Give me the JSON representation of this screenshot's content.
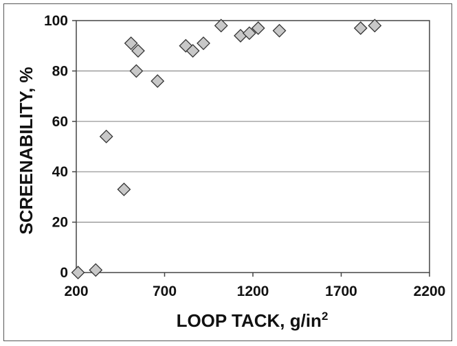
{
  "chart_data": {
    "type": "scatter",
    "title": "",
    "xlabel": "LOOP TACK, g/in",
    "xlabel_superscript": "2",
    "ylabel": "SCREENABILITY, %",
    "xlim": [
      200,
      2200
    ],
    "ylim": [
      0,
      100
    ],
    "x_ticks": [
      200,
      700,
      1200,
      1700,
      2200
    ],
    "y_ticks": [
      0,
      20,
      40,
      60,
      80,
      100
    ],
    "grid": "horizontal",
    "legend": "none",
    "marker": "diamond",
    "marker_fill": "#c8c8c8",
    "marker_stroke": "#333333",
    "gridline_color": "#8c8c8c",
    "points": [
      {
        "x": 210,
        "y": 0
      },
      {
        "x": 310,
        "y": 1
      },
      {
        "x": 370,
        "y": 54
      },
      {
        "x": 470,
        "y": 33
      },
      {
        "x": 510,
        "y": 91
      },
      {
        "x": 540,
        "y": 80
      },
      {
        "x": 550,
        "y": 88
      },
      {
        "x": 660,
        "y": 76
      },
      {
        "x": 820,
        "y": 90
      },
      {
        "x": 860,
        "y": 88
      },
      {
        "x": 920,
        "y": 91
      },
      {
        "x": 1020,
        "y": 98
      },
      {
        "x": 1130,
        "y": 94
      },
      {
        "x": 1180,
        "y": 95
      },
      {
        "x": 1230,
        "y": 97
      },
      {
        "x": 1350,
        "y": 96
      },
      {
        "x": 1810,
        "y": 97
      },
      {
        "x": 1890,
        "y": 98
      }
    ]
  }
}
